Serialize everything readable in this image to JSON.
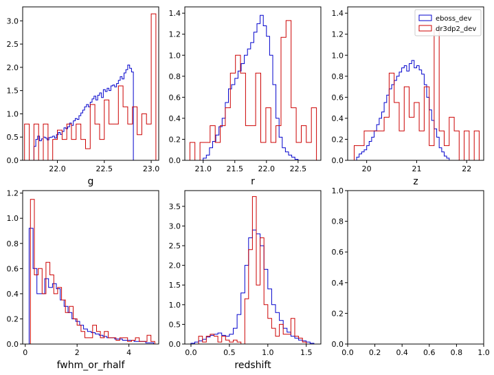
{
  "colors": {
    "eboss_dev": "#0000cc",
    "dr3dp2_dev": "#cc0000"
  },
  "legend": {
    "position": "top-right",
    "entries": [
      "eboss_dev",
      "dr3dp2_dev"
    ]
  },
  "chart_data": [
    {
      "type": "histogram",
      "xlabel": "g",
      "xlim": [
        21.63,
        23.08
      ],
      "ylim": [
        0,
        3.3
      ],
      "xticks": [
        22.0,
        22.5,
        23.0
      ],
      "xtick_labels": [
        "22.0",
        "22.5",
        "23.0"
      ],
      "yticks": [
        0,
        0.5,
        1.0,
        1.5,
        2.0,
        2.5,
        3.0
      ],
      "ytick_labels": [
        "0.0",
        "0.5",
        "1.0",
        "1.5",
        "2.0",
        "2.5",
        "3.0"
      ],
      "series": [
        {
          "name": "eboss_dev",
          "edges": [
            21.75,
            21.77,
            21.79,
            21.81,
            21.83,
            21.85,
            21.87,
            21.89,
            21.91,
            21.93,
            21.95,
            21.97,
            21.99,
            22.01,
            22.03,
            22.05,
            22.07,
            22.09,
            22.11,
            22.13,
            22.15,
            22.17,
            22.19,
            22.21,
            22.23,
            22.25,
            22.27,
            22.29,
            22.31,
            22.33,
            22.35,
            22.37,
            22.39,
            22.41,
            22.43,
            22.45,
            22.47,
            22.49,
            22.51,
            22.53,
            22.55,
            22.57,
            22.59,
            22.61,
            22.63,
            22.65,
            22.67,
            22.69,
            22.71,
            22.73,
            22.75,
            22.77,
            22.79,
            22.81,
            22.83
          ],
          "heights": [
            0.3,
            0.45,
            0.52,
            0.42,
            0.46,
            0.5,
            0.48,
            0.44,
            0.49,
            0.5,
            0.52,
            0.48,
            0.55,
            0.6,
            0.56,
            0.62,
            0.7,
            0.68,
            0.72,
            0.8,
            0.75,
            0.85,
            0.9,
            0.88,
            0.96,
            1.02,
            1.08,
            1.15,
            1.2,
            1.15,
            1.25,
            1.32,
            1.38,
            1.3,
            1.4,
            1.45,
            1.35,
            1.52,
            1.48,
            1.55,
            1.5,
            1.6,
            1.62,
            1.58,
            1.65,
            1.72,
            1.8,
            1.75,
            1.88,
            1.95,
            2.05,
            1.98,
            1.9,
            0.0
          ]
        },
        {
          "name": "dr3dp2_dev",
          "edges": [
            21.65,
            21.7,
            21.75,
            21.8,
            21.85,
            21.9,
            21.95,
            22.0,
            22.05,
            22.1,
            22.15,
            22.2,
            22.25,
            22.3,
            22.35,
            22.4,
            22.45,
            22.5,
            22.55,
            22.6,
            22.65,
            22.7,
            22.75,
            22.8,
            22.85,
            22.9,
            22.95,
            23.0,
            23.05
          ],
          "heights": [
            0.78,
            0,
            0.78,
            0,
            0.78,
            0,
            0.45,
            0.65,
            0.45,
            0.78,
            0.45,
            0.78,
            0.45,
            0.25,
            1.2,
            0.78,
            0.45,
            1.3,
            0.78,
            0.78,
            1.6,
            1.15,
            0.78,
            1.15,
            0.55,
            1.0,
            0.78,
            3.15
          ]
        }
      ]
    },
    {
      "type": "histogram",
      "xlabel": "r",
      "xlim": [
        20.71,
        22.86
      ],
      "ylim": [
        0,
        1.46
      ],
      "xticks": [
        21.0,
        21.5,
        22.0,
        22.5
      ],
      "xtick_labels": [
        "21.0",
        "21.5",
        "22.0",
        "22.5"
      ],
      "yticks": [
        0,
        0.2,
        0.4,
        0.6,
        0.8,
        1.0,
        1.2,
        1.4
      ],
      "ytick_labels": [
        "0.0",
        "0.2",
        "0.4",
        "0.6",
        "0.8",
        "1.0",
        "1.2",
        "1.4"
      ],
      "series": [
        {
          "name": "eboss_dev",
          "edges": [
            21.0,
            21.05,
            21.1,
            21.15,
            21.2,
            21.25,
            21.3,
            21.35,
            21.4,
            21.45,
            21.5,
            21.55,
            21.6,
            21.65,
            21.7,
            21.75,
            21.8,
            21.85,
            21.9,
            21.95,
            22.0,
            22.05,
            22.1,
            22.15,
            22.2,
            22.25,
            22.3,
            22.35,
            22.4,
            22.45,
            22.5
          ],
          "heights": [
            0.02,
            0.05,
            0.12,
            0.18,
            0.24,
            0.32,
            0.4,
            0.55,
            0.68,
            0.72,
            0.78,
            0.85,
            0.92,
            1.0,
            1.06,
            1.12,
            1.22,
            1.3,
            1.38,
            1.28,
            1.18,
            1.0,
            0.72,
            0.4,
            0.22,
            0.12,
            0.08,
            0.05,
            0.03,
            0.01
          ]
        },
        {
          "name": "dr3dp2_dev",
          "edges": [
            20.79,
            20.87,
            20.95,
            21.03,
            21.11,
            21.19,
            21.27,
            21.35,
            21.43,
            21.51,
            21.59,
            21.67,
            21.75,
            21.83,
            21.91,
            21.99,
            22.07,
            22.15,
            22.23,
            22.31,
            22.39,
            22.47,
            22.55,
            22.63,
            22.71,
            22.79
          ],
          "heights": [
            0.17,
            0,
            0.17,
            0.17,
            0.33,
            0.17,
            0.33,
            0.5,
            0.83,
            1.0,
            0.83,
            0.33,
            0.33,
            0.83,
            0.17,
            0.5,
            0.17,
            0.33,
            1.17,
            1.33,
            0.5,
            0.17,
            0.33,
            0.17,
            0.5
          ]
        }
      ]
    },
    {
      "type": "histogram",
      "xlabel": "z",
      "xlim": [
        19.62,
        22.34
      ],
      "ylim": [
        0,
        1.46
      ],
      "xticks": [
        20,
        21,
        22
      ],
      "xtick_labels": [
        "20",
        "21",
        "22"
      ],
      "yticks": [
        0,
        0.2,
        0.4,
        0.6,
        0.8,
        1.0,
        1.2,
        1.4
      ],
      "ytick_labels": [
        "0.0",
        "0.2",
        "0.4",
        "0.6",
        "0.8",
        "1.0",
        "1.2",
        "1.4"
      ],
      "series": [
        {
          "name": "eboss_dev",
          "edges": [
            19.8,
            19.85,
            19.9,
            19.95,
            20.0,
            20.05,
            20.1,
            20.15,
            20.2,
            20.25,
            20.3,
            20.35,
            20.4,
            20.45,
            20.5,
            20.55,
            20.6,
            20.65,
            20.7,
            20.75,
            20.8,
            20.85,
            20.9,
            20.95,
            21.0,
            21.05,
            21.1,
            21.15,
            21.2,
            21.25,
            21.3,
            21.35,
            21.4,
            21.45,
            21.5,
            21.55,
            21.6,
            21.65
          ],
          "heights": [
            0.03,
            0.06,
            0.08,
            0.1,
            0.14,
            0.18,
            0.22,
            0.28,
            0.34,
            0.4,
            0.46,
            0.55,
            0.62,
            0.68,
            0.72,
            0.76,
            0.8,
            0.84,
            0.88,
            0.9,
            0.85,
            0.92,
            0.95,
            0.88,
            0.9,
            0.86,
            0.82,
            0.72,
            0.6,
            0.48,
            0.38,
            0.3,
            0.22,
            0.12,
            0.08,
            0.04,
            0.02
          ]
        },
        {
          "name": "dr3dp2_dev",
          "edges": [
            19.75,
            19.85,
            19.95,
            20.05,
            20.15,
            20.25,
            20.35,
            20.45,
            20.55,
            20.65,
            20.75,
            20.85,
            20.95,
            21.05,
            21.15,
            21.25,
            21.35,
            21.45,
            21.55,
            21.65,
            21.75,
            21.85,
            21.95,
            22.05,
            22.15,
            22.25
          ],
          "heights": [
            0.14,
            0.14,
            0.28,
            0.28,
            0.28,
            0.28,
            0.41,
            0.83,
            0.55,
            0.28,
            0.7,
            0.41,
            0.55,
            0.28,
            0.7,
            0.14,
            1.24,
            0.28,
            0.14,
            0.41,
            0.28,
            0,
            0.28,
            0,
            0.28
          ]
        }
      ]
    },
    {
      "type": "histogram",
      "xlabel": "fwhm_or_rhalf",
      "xlim": [
        -0.1,
        5.15
      ],
      "ylim": [
        0,
        1.22
      ],
      "xticks": [
        0,
        2,
        4
      ],
      "xtick_labels": [
        "0",
        "2",
        "4"
      ],
      "yticks": [
        0,
        0.2,
        0.4,
        0.6,
        0.8,
        1.0,
        1.2
      ],
      "ytick_labels": [
        "0.0",
        "0.2",
        "0.4",
        "0.6",
        "0.8",
        "1.0",
        "1.2"
      ],
      "series": [
        {
          "name": "eboss_dev",
          "edges": [
            0.15,
            0.3,
            0.45,
            0.6,
            0.75,
            0.9,
            1.05,
            1.2,
            1.35,
            1.5,
            1.65,
            1.8,
            1.95,
            2.1,
            2.25,
            2.4,
            2.55,
            2.7,
            2.85,
            3.0,
            3.15,
            3.3,
            3.45,
            3.6,
            3.75,
            3.9,
            4.05,
            4.2,
            4.35,
            4.5,
            4.65,
            4.8,
            4.95
          ],
          "heights": [
            0.92,
            0.6,
            0.4,
            0.4,
            0.52,
            0.45,
            0.48,
            0.44,
            0.35,
            0.3,
            0.25,
            0.2,
            0.18,
            0.15,
            0.12,
            0.1,
            0.09,
            0.08,
            0.07,
            0.06,
            0.05,
            0.05,
            0.04,
            0.04,
            0.03,
            0.03,
            0.03,
            0.02,
            0.02,
            0.02,
            0.01,
            0.01
          ]
        },
        {
          "name": "dr3dp2_dev",
          "edges": [
            0.2,
            0.35,
            0.5,
            0.65,
            0.8,
            0.95,
            1.1,
            1.25,
            1.4,
            1.55,
            1.7,
            1.85,
            2.0,
            2.15,
            2.3,
            2.45,
            2.6,
            2.75,
            2.9,
            3.05,
            3.2,
            3.35,
            3.5,
            3.65,
            3.8,
            3.95,
            4.1,
            4.25,
            4.4,
            4.55,
            4.7,
            4.85,
            5.0
          ],
          "heights": [
            1.15,
            0.55,
            0.6,
            0.4,
            0.65,
            0.55,
            0.4,
            0.45,
            0.35,
            0.25,
            0.3,
            0.2,
            0.15,
            0.1,
            0.05,
            0.05,
            0.15,
            0.1,
            0.05,
            0.1,
            0.05,
            0.05,
            0.03,
            0.05,
            0.05,
            0.02,
            0.03,
            0.05,
            0.02,
            0.02,
            0.07,
            0.02
          ]
        }
      ]
    },
    {
      "type": "histogram",
      "xlabel": "redshift",
      "xlim": [
        -0.08,
        1.69
      ],
      "ylim": [
        0,
        3.9
      ],
      "xticks": [
        0.0,
        0.5,
        1.0,
        1.5
      ],
      "xtick_labels": [
        "0.0",
        "0.5",
        "1.0",
        "1.5"
      ],
      "yticks": [
        0,
        0.5,
        1.0,
        1.5,
        2.0,
        2.5,
        3.0,
        3.5
      ],
      "ytick_labels": [
        "0.0",
        "0.5",
        "1.0",
        "1.5",
        "2.0",
        "2.5",
        "3.0",
        "3.5"
      ],
      "series": [
        {
          "name": "eboss_dev",
          "edges": [
            0.0,
            0.05,
            0.1,
            0.15,
            0.2,
            0.25,
            0.3,
            0.35,
            0.4,
            0.45,
            0.5,
            0.55,
            0.6,
            0.65,
            0.7,
            0.75,
            0.8,
            0.85,
            0.9,
            0.95,
            1.0,
            1.05,
            1.1,
            1.15,
            1.2,
            1.25,
            1.3,
            1.35,
            1.4,
            1.45,
            1.5,
            1.55,
            1.6
          ],
          "heights": [
            0.02,
            0.05,
            0.08,
            0.12,
            0.18,
            0.22,
            0.25,
            0.28,
            0.22,
            0.2,
            0.25,
            0.4,
            0.75,
            1.3,
            2.0,
            2.7,
            2.9,
            2.8,
            2.5,
            1.9,
            1.4,
            1.0,
            0.8,
            0.6,
            0.4,
            0.3,
            0.2,
            0.15,
            0.1,
            0.08,
            0.05,
            0.02
          ]
        },
        {
          "name": "dr3dp2_dev",
          "edges": [
            0.1,
            0.15,
            0.2,
            0.25,
            0.3,
            0.35,
            0.4,
            0.45,
            0.5,
            0.55,
            0.6,
            0.65,
            0.7,
            0.75,
            0.8,
            0.85,
            0.9,
            0.95,
            1.0,
            1.05,
            1.1,
            1.15,
            1.2,
            1.25,
            1.3,
            1.35,
            1.4,
            1.45,
            1.5
          ],
          "heights": [
            0.2,
            0.05,
            0.2,
            0.25,
            0.2,
            0.05,
            0.2,
            0.1,
            0.05,
            0.1,
            0.05,
            0.0,
            1.15,
            2.4,
            3.75,
            1.5,
            2.7,
            1.0,
            0.65,
            0.4,
            0.2,
            0.5,
            0.25,
            0.25,
            0.65,
            0.2,
            0.15,
            0.05
          ]
        }
      ]
    },
    {
      "type": "empty",
      "xlabel": "",
      "xlim": [
        0,
        1
      ],
      "ylim": [
        0,
        1
      ],
      "xticks": [
        0,
        0.2,
        0.4,
        0.6,
        0.8,
        1.0
      ],
      "xtick_labels": [
        "0.0",
        "0.2",
        "0.4",
        "0.6",
        "0.8",
        "1.0"
      ],
      "yticks": [
        0,
        0.2,
        0.4,
        0.6,
        0.8,
        1.0
      ],
      "ytick_labels": [
        "0.0",
        "0.2",
        "0.4",
        "0.6",
        "0.8",
        "1.0"
      ],
      "series": []
    }
  ]
}
